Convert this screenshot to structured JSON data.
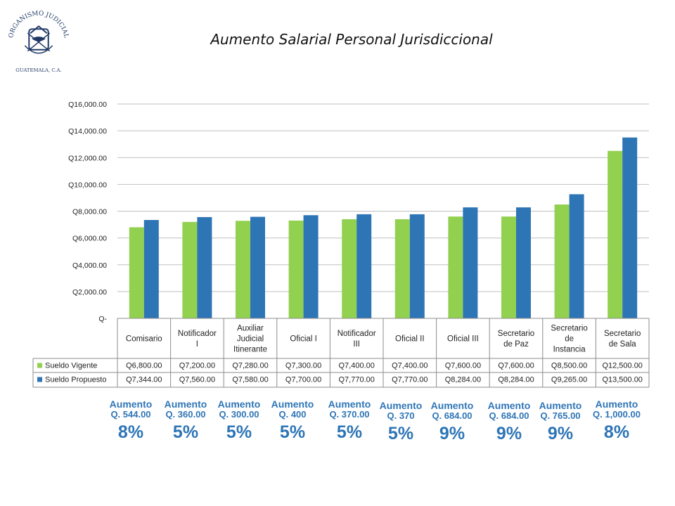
{
  "header": {
    "seal_top": "ORGANISMO JUDICIAL",
    "seal_bottom": "GUATEMALA, C.A."
  },
  "chart_data": {
    "type": "bar",
    "title": "Aumento Salarial Personal Jurisdiccional",
    "ylim": [
      0,
      16000
    ],
    "yticks": [
      {
        "value": 0,
        "label": "Q-"
      },
      {
        "value": 2000,
        "label": "Q2,000.00"
      },
      {
        "value": 4000,
        "label": "Q4,000.00"
      },
      {
        "value": 6000,
        "label": "Q6,000.00"
      },
      {
        "value": 8000,
        "label": "Q8,000.00"
      },
      {
        "value": 10000,
        "label": "Q10,000.00"
      },
      {
        "value": 12000,
        "label": "Q12,000.00"
      },
      {
        "value": 14000,
        "label": "Q14,000.00"
      },
      {
        "value": 16000,
        "label": "Q16,000.00"
      }
    ],
    "grid": true,
    "categories": [
      [
        "Comisario"
      ],
      [
        "Notificador",
        "I"
      ],
      [
        "Auxiliar",
        "Judicial",
        "Itinerante"
      ],
      [
        "Oficial I"
      ],
      [
        "Notificador",
        "III"
      ],
      [
        "Oficial II"
      ],
      [
        "Oficial  III"
      ],
      [
        "Secretario",
        "de Paz"
      ],
      [
        "Secretario",
        "de",
        "Instancia"
      ],
      [
        "Secretario",
        "de Sala"
      ]
    ],
    "series": [
      {
        "name": "Sueldo Vigente",
        "color": "#92d050",
        "values": [
          6800,
          7200,
          7280,
          7300,
          7400,
          7400,
          7600,
          7600,
          8500,
          12500
        ],
        "labels": [
          "Q6,800.00",
          "Q7,200.00",
          "Q7,280.00",
          "Q7,300.00",
          "Q7,400.00",
          "Q7,400.00",
          "Q7,600.00",
          "Q7,600.00",
          "Q8,500.00",
          "Q12,500.00"
        ]
      },
      {
        "name": "Sueldo Propuesto",
        "color": "#2e75b6",
        "values": [
          7344,
          7560,
          7580,
          7700,
          7770,
          7770,
          8284,
          8284,
          9265,
          13500
        ],
        "labels": [
          "Q7,344.00",
          "Q7,560.00",
          "Q7,580.00",
          "Q7,700.00",
          "Q7,770.00",
          "Q7,770.00",
          "Q8,284.00",
          "Q8,284.00",
          "Q9,265.00",
          "Q13,500.00"
        ]
      }
    ]
  },
  "annotations": [
    {
      "label": "Aumento",
      "amount": "Q. 544.00",
      "percent": "8%"
    },
    {
      "label": "Aumento",
      "amount": "Q. 360.00",
      "percent": "5%"
    },
    {
      "label": "Aumento",
      "amount": "Q. 300.00",
      "percent": "5%"
    },
    {
      "label": "Aumento",
      "amount": "Q. 400",
      "percent": "5%"
    },
    {
      "label": "Aumento",
      "amount": "Q. 370.00",
      "percent": "5%"
    },
    {
      "label": "Aumento",
      "amount": "Q. 370",
      "percent": "5%"
    },
    {
      "label": "Aumento",
      "amount": "Q. 684.00",
      "percent": "9%"
    },
    {
      "label": "Aumento",
      "amount": "Q. 684.00",
      "percent": "9%"
    },
    {
      "label": "Aumento",
      "amount": "Q. 765.00",
      "percent": "9%"
    },
    {
      "label": "Aumento",
      "amount": "Q. 1,000.00",
      "percent": "8%"
    }
  ]
}
